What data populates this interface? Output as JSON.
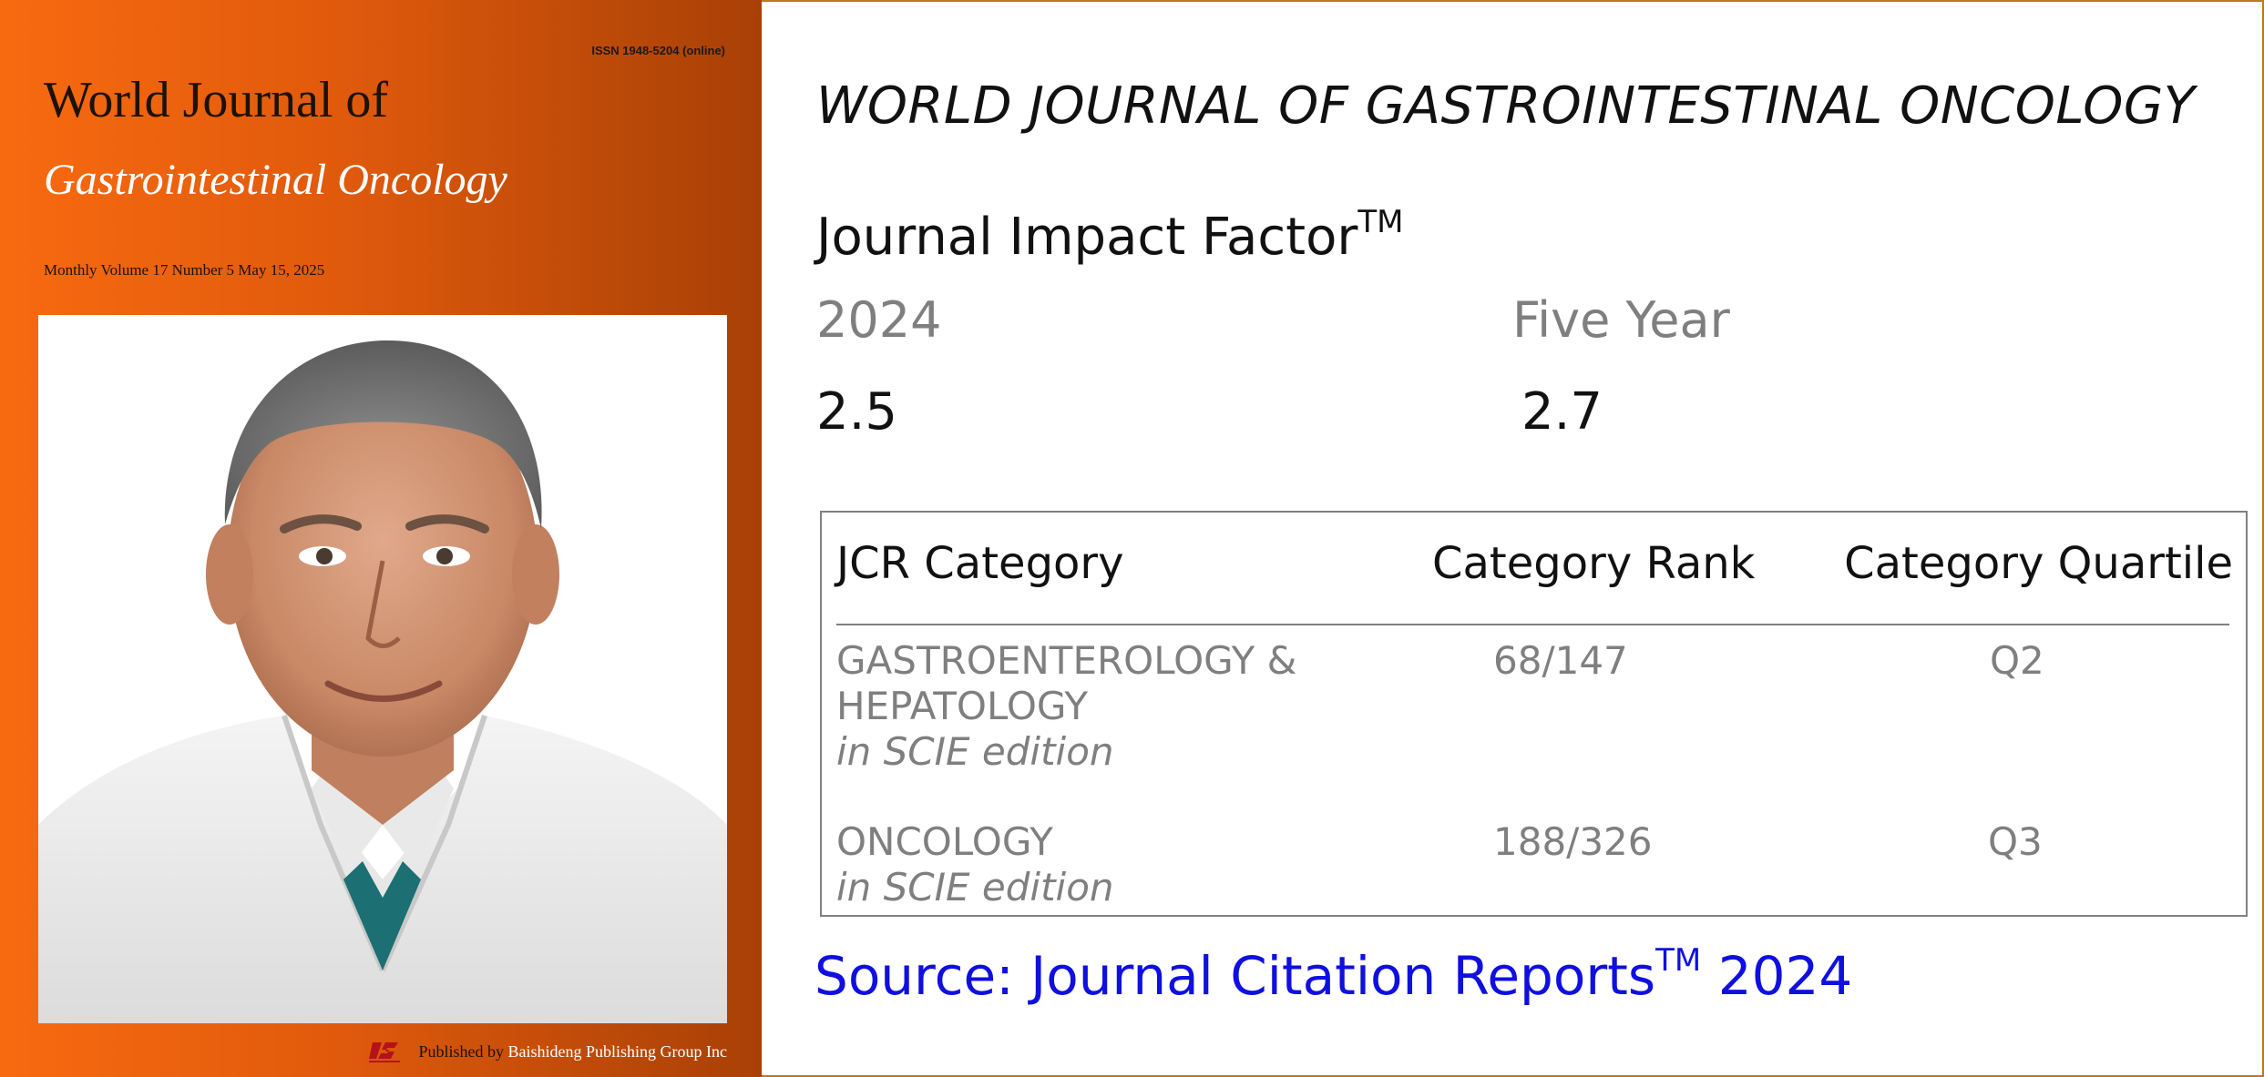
{
  "cover": {
    "issn": "ISSN 1948-5204 (online)",
    "title_line1": "World Journal of",
    "title_line2": "Gastrointestinal Oncology",
    "issue": "Monthly Volume 17 Number 5 May 15, 2025",
    "published_by": "Published by",
    "publisher_name": "Baishideng Publishing Group Inc",
    "colors": {
      "accent": "#f86a10",
      "accent_dark": "#a84006"
    }
  },
  "panel": {
    "journal_name": "WORLD JOURNAL OF GASTROINTESTINAL ONCOLOGY",
    "jif_heading": "Journal Impact Factor",
    "jif_trademark": "TM",
    "year_label": "2024",
    "year_value": "2.5",
    "five_year_label": "Five Year",
    "five_year_value": "2.7",
    "jcr": {
      "headers": {
        "category": "JCR Category",
        "rank": "Category Rank",
        "quartile": "Category Quartile"
      },
      "rows": [
        {
          "category_line1": "GASTROENTEROLOGY &",
          "category_line2": "HEPATOLOGY",
          "edition": "in SCIE edition",
          "rank": "68/147",
          "quartile": "Q2"
        },
        {
          "category_line1": "ONCOLOGY",
          "edition": "in SCIE edition",
          "rank": "188/326",
          "quartile": "Q3"
        }
      ]
    },
    "source_prefix": "Source: Journal Citation Reports",
    "source_trademark": "TM",
    "source_year": "2024",
    "colors": {
      "source": "#0f0fe0",
      "muted": "#7f7f7f"
    }
  }
}
